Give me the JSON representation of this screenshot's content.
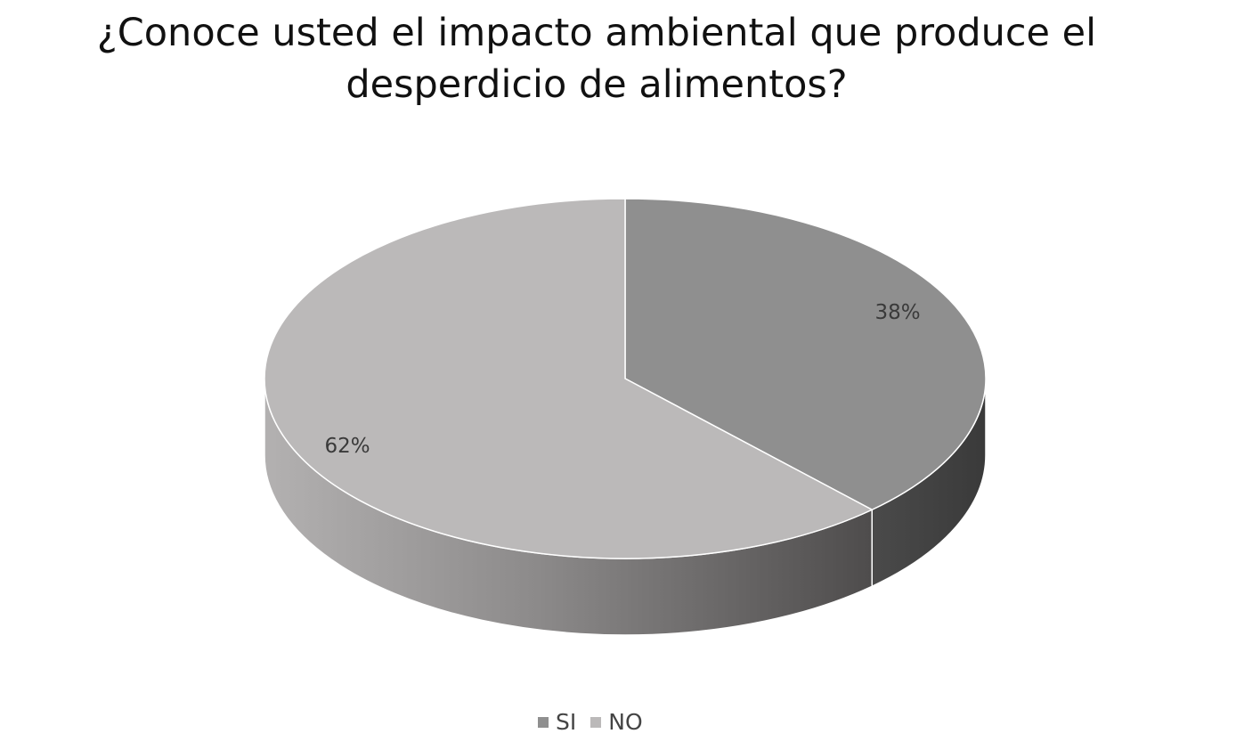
{
  "chart_data": {
    "type": "pie",
    "title_lines": [
      "¿Conoce usted el impacto ambiental que produce el",
      "desperdicio de alimentos?"
    ],
    "categories": [
      "SI",
      "NO"
    ],
    "values": [
      38,
      62
    ],
    "data_labels": [
      "38%",
      "62%"
    ],
    "colors": [
      "#8f8f8f",
      "#bbb9b9"
    ],
    "style": "3d",
    "legend_position": "bottom"
  }
}
